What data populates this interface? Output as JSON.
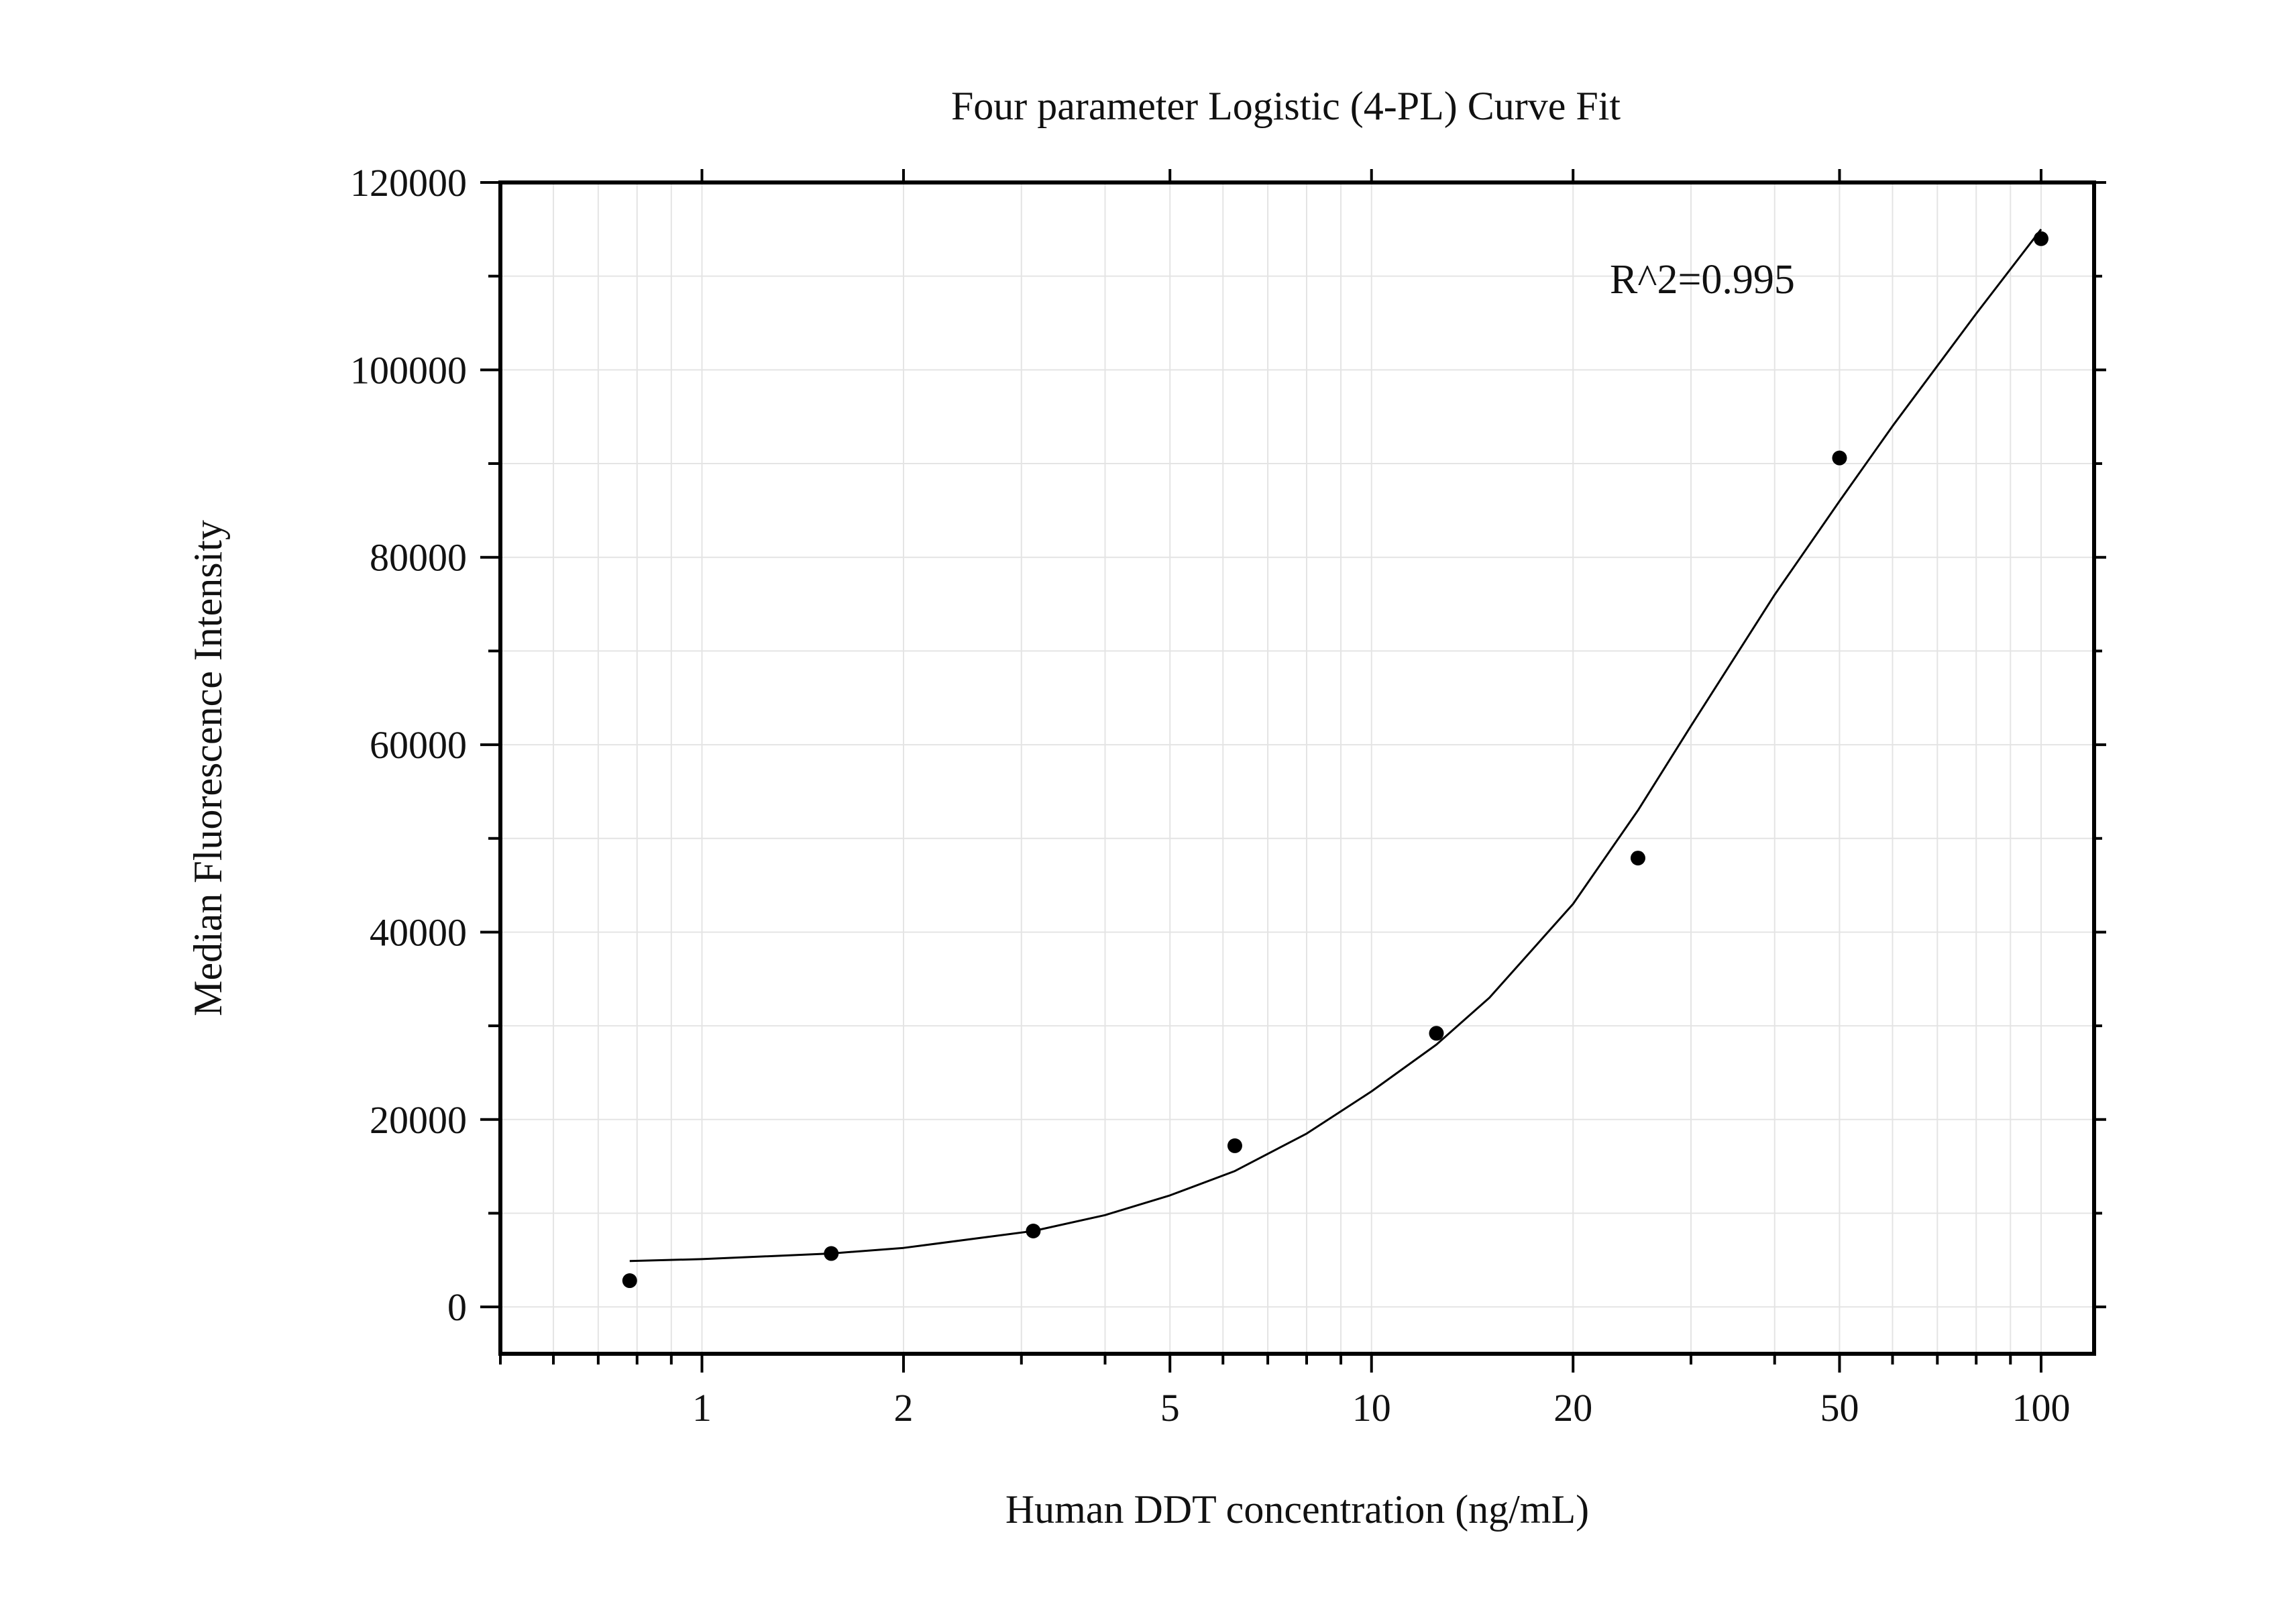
{
  "chart_data": {
    "type": "scatter",
    "title": "Four parameter Logistic (4-PL) Curve Fit",
    "xlabel": "Human DDT concentration (ng/mL)",
    "ylabel": "Median Fluorescence Intensity",
    "x_scale": "log",
    "xlim": [
      0.5,
      120
    ],
    "ylim": [
      -5000,
      120000
    ],
    "x_ticks": [
      1,
      2,
      5,
      10,
      20,
      50,
      100
    ],
    "x_tick_labels": [
      "1",
      "2",
      "5",
      "10",
      "20",
      "50",
      "100"
    ],
    "y_ticks": [
      0,
      20000,
      40000,
      60000,
      80000,
      100000,
      120000
    ],
    "y_tick_labels": [
      "0",
      "20000",
      "40000",
      "60000",
      "80000",
      "100000",
      "120000"
    ],
    "grid": true,
    "annotation": "R^2=0.995",
    "series": [
      {
        "type": "scatter",
        "x": [
          0.78,
          1.56,
          3.125,
          6.25,
          12.5,
          25,
          50,
          100
        ],
        "y": [
          2800,
          5700,
          8100,
          17200,
          29200,
          47900,
          90600,
          114000
        ],
        "color": "#000000"
      },
      {
        "type": "line",
        "x": [
          0.78,
          1,
          1.56,
          2,
          3.125,
          4,
          5,
          6.25,
          8,
          10,
          12.5,
          15,
          20,
          25,
          30,
          40,
          50,
          60,
          80,
          100
        ],
        "y": [
          4900,
          5100,
          5700,
          6300,
          8100,
          9800,
          11900,
          14500,
          18500,
          23000,
          28000,
          33000,
          43000,
          53000,
          62000,
          76000,
          86000,
          94000,
          106000,
          115000
        ],
        "color": "#000000"
      }
    ]
  }
}
